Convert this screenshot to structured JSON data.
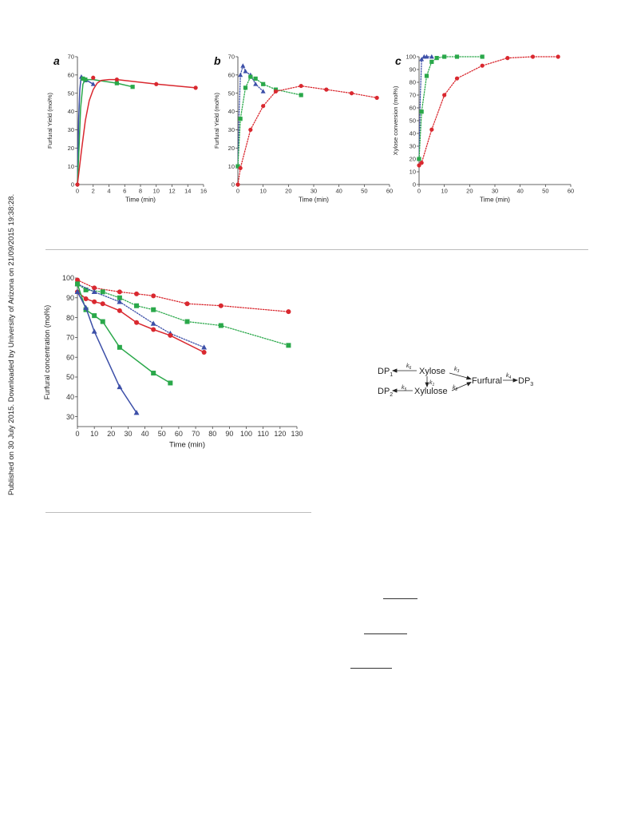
{
  "watermark": "Published on 30 July 2015. Downloaded by University of Arizona on 21/09/2015 19:38:28.",
  "colors": {
    "red": "#d9282f",
    "green": "#2aa84a",
    "blue": "#3c4fa8",
    "axis": "#333333"
  },
  "chart_data": [
    {
      "type": "line",
      "panel_label": "a",
      "xlabel": "Time (min)",
      "ylabel": "Furfural Yield (mol%)",
      "xlim": [
        0,
        16
      ],
      "ylim": [
        0,
        70
      ],
      "xticks": [
        0,
        2,
        4,
        6,
        8,
        10,
        12,
        14,
        16
      ],
      "yticks": [
        0,
        10,
        20,
        30,
        40,
        50,
        60,
        70
      ],
      "series": [
        {
          "color": "blue",
          "marker": "triangle",
          "style": "solid",
          "x": [
            0.5,
            1,
            2
          ],
          "y": [
            59,
            57,
            55
          ],
          "curve": [
            [
              0,
              0
            ],
            [
              0.15,
              35
            ],
            [
              0.3,
              52
            ],
            [
              0.45,
              58
            ],
            [
              0.6,
              59
            ],
            [
              1,
              57.5
            ],
            [
              2,
              55
            ]
          ]
        },
        {
          "color": "green",
          "marker": "square",
          "style": "solid",
          "x": [
            0.7,
            1,
            5,
            7
          ],
          "y": [
            58,
            57.5,
            55.5,
            53.5
          ],
          "curve": [
            [
              0,
              0
            ],
            [
              0.2,
              20
            ],
            [
              0.4,
              42
            ],
            [
              0.7,
              55
            ],
            [
              1,
              57.5
            ],
            [
              2,
              57.5
            ],
            [
              3,
              56.8
            ],
            [
              5,
              55.5
            ],
            [
              7,
              53.5
            ]
          ]
        },
        {
          "color": "red",
          "marker": "circle",
          "style": "solid",
          "x": [
            0,
            2,
            5,
            10,
            15
          ],
          "y": [
            0,
            58.5,
            57.5,
            55,
            53
          ],
          "curve": [
            [
              0,
              0
            ],
            [
              0.5,
              18
            ],
            [
              1,
              35
            ],
            [
              1.5,
              46
            ],
            [
              2,
              52
            ],
            [
              2.5,
              55.5
            ],
            [
              3,
              57
            ],
            [
              4,
              57.5
            ],
            [
              5,
              57.5
            ],
            [
              10,
              55
            ],
            [
              15,
              53
            ]
          ]
        }
      ]
    },
    {
      "type": "line",
      "panel_label": "b",
      "xlabel": "Time (min)",
      "ylabel": "Furfural Yield (mol%)",
      "xlim": [
        0,
        60
      ],
      "ylim": [
        0,
        70
      ],
      "xticks": [
        0,
        10,
        20,
        30,
        40,
        50,
        60
      ],
      "yticks": [
        0,
        10,
        20,
        30,
        40,
        50,
        60,
        70
      ],
      "series": [
        {
          "color": "blue",
          "marker": "triangle",
          "style": "dotted",
          "x": [
            0,
            1,
            2,
            3,
            5,
            7,
            10
          ],
          "y": [
            10,
            60,
            65,
            62,
            60,
            55,
            51
          ],
          "curve": [
            [
              0,
              10
            ],
            [
              0.5,
              40
            ],
            [
              1,
              60
            ],
            [
              2,
              65
            ],
            [
              3,
              62
            ],
            [
              5,
              60
            ],
            [
              7,
              55
            ],
            [
              10,
              51
            ]
          ]
        },
        {
          "color": "green",
          "marker": "square",
          "style": "dotted",
          "x": [
            0,
            1,
            3,
            5,
            7,
            10,
            15,
            25
          ],
          "y": [
            10,
            36,
            53,
            59,
            58,
            55,
            52,
            49
          ],
          "curve": [
            [
              0,
              10
            ],
            [
              1,
              36
            ],
            [
              3,
              53
            ],
            [
              5,
              59
            ],
            [
              7,
              58
            ],
            [
              10,
              55
            ],
            [
              15,
              52
            ],
            [
              25,
              49
            ]
          ]
        },
        {
          "color": "red",
          "marker": "circle",
          "style": "dotted",
          "x": [
            0,
            1,
            5,
            10,
            15,
            25,
            35,
            45,
            55
          ],
          "y": [
            0,
            9,
            30,
            43,
            51,
            54,
            52,
            50,
            47.5
          ],
          "curve": [
            [
              0,
              0
            ],
            [
              1,
              9
            ],
            [
              5,
              30
            ],
            [
              10,
              43
            ],
            [
              15,
              51
            ],
            [
              25,
              54
            ],
            [
              35,
              52
            ],
            [
              45,
              50
            ],
            [
              55,
              47.5
            ]
          ]
        }
      ]
    },
    {
      "type": "line",
      "panel_label": "c",
      "xlabel": "Time (min)",
      "ylabel": "Xylose conversion (mol%)",
      "xlim": [
        0,
        60
      ],
      "ylim": [
        0,
        100
      ],
      "xticks": [
        0,
        10,
        20,
        30,
        40,
        50,
        60
      ],
      "yticks": [
        0,
        10,
        20,
        30,
        40,
        50,
        60,
        70,
        80,
        90,
        100
      ],
      "series": [
        {
          "color": "blue",
          "marker": "triangle",
          "style": "dotted",
          "x": [
            0,
            1,
            2,
            3,
            5
          ],
          "y": [
            20,
            98,
            100,
            100,
            100
          ],
          "curve": [
            [
              0,
              20
            ],
            [
              0.5,
              70
            ],
            [
              1,
              98
            ],
            [
              2,
              100
            ],
            [
              5,
              100
            ]
          ]
        },
        {
          "color": "green",
          "marker": "square",
          "style": "dotted",
          "x": [
            0,
            1,
            3,
            5,
            7,
            10,
            15,
            25
          ],
          "y": [
            20,
            57,
            85,
            96,
            99,
            100,
            100,
            100
          ],
          "curve": [
            [
              0,
              20
            ],
            [
              1,
              57
            ],
            [
              3,
              85
            ],
            [
              5,
              96
            ],
            [
              7,
              99
            ],
            [
              10,
              100
            ],
            [
              15,
              100
            ],
            [
              25,
              100
            ]
          ]
        },
        {
          "color": "red",
          "marker": "circle",
          "style": "dotted",
          "x": [
            0,
            1,
            5,
            10,
            15,
            25,
            35,
            45,
            55
          ],
          "y": [
            15,
            17,
            43,
            70,
            83,
            93,
            99,
            100,
            100
          ],
          "curve": [
            [
              0,
              15
            ],
            [
              1,
              17
            ],
            [
              5,
              43
            ],
            [
              10,
              70
            ],
            [
              15,
              83
            ],
            [
              25,
              93
            ],
            [
              35,
              99
            ],
            [
              45,
              100
            ],
            [
              55,
              100
            ]
          ]
        }
      ]
    },
    {
      "type": "line",
      "panel_label": "",
      "xlabel": "Time (min)",
      "ylabel": "Furfural concentration (mol%)",
      "xlim": [
        0,
        130
      ],
      "ylim": [
        25,
        100
      ],
      "xticks": [
        0,
        10,
        20,
        30,
        40,
        50,
        60,
        70,
        80,
        90,
        100,
        110,
        120,
        130
      ],
      "yticks": [
        30,
        40,
        50,
        60,
        70,
        80,
        90,
        100
      ],
      "series": [
        {
          "color": "red",
          "marker": "circle",
          "style": "dotted",
          "x": [
            0,
            10,
            25,
            35,
            45,
            65,
            85,
            125
          ],
          "y": [
            99,
            95,
            93,
            92,
            91,
            87,
            86,
            83
          ]
        },
        {
          "color": "green",
          "marker": "square",
          "style": "dotted",
          "x": [
            0,
            5,
            15,
            25,
            35,
            45,
            65,
            85,
            125
          ],
          "y": [
            97,
            94,
            93,
            90,
            86,
            84,
            78,
            76,
            66
          ]
        },
        {
          "color": "blue",
          "marker": "triangle",
          "style": "dotted",
          "x": [
            0,
            10,
            25,
            45,
            55,
            75
          ],
          "y": [
            97,
            93,
            88,
            77,
            72,
            65
          ]
        },
        {
          "color": "red",
          "marker": "circle",
          "style": "solid",
          "x": [
            0,
            5,
            10,
            15,
            25,
            35,
            45,
            55,
            75
          ],
          "y": [
            93,
            89.5,
            88,
            87,
            83.5,
            77.5,
            74,
            71,
            62.5
          ]
        },
        {
          "color": "green",
          "marker": "square",
          "style": "solid",
          "x": [
            0,
            5,
            10,
            15,
            25,
            45,
            55
          ],
          "y": [
            97,
            84,
            81,
            78,
            65,
            52,
            47
          ]
        },
        {
          "color": "blue",
          "marker": "triangle",
          "style": "solid",
          "x": [
            0,
            5,
            10,
            25,
            35
          ],
          "y": [
            93,
            85,
            73,
            45,
            32
          ]
        }
      ]
    }
  ],
  "scheme": {
    "dp1": "DP",
    "dp1_sub": "1",
    "k6": "k",
    "k6_sub": "6",
    "xylose": "Xylose",
    "k3": "k",
    "k3_sub": "3",
    "furfural": "Furfural",
    "k4": "k",
    "k4_sub": "4",
    "dp3": "DP",
    "dp3_sub": "3",
    "k1": "k",
    "k1_sub": "1",
    "dp2": "DP",
    "dp2_sub": "2",
    "k5": "k",
    "k5_sub": "5",
    "xylulose": "Xylulose",
    "k2": "k",
    "k2_sub": "2"
  }
}
